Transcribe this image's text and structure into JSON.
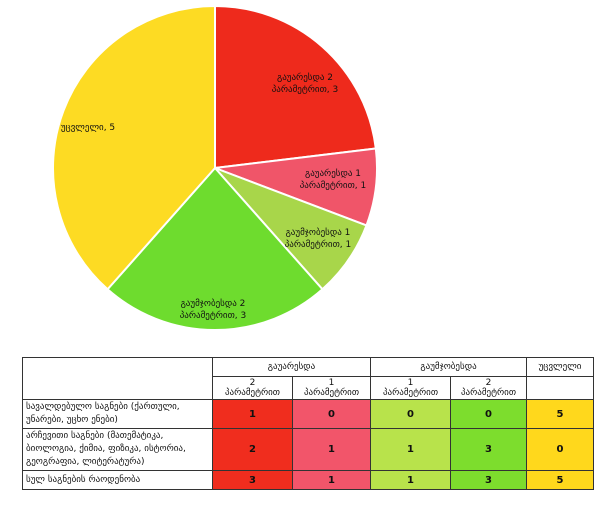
{
  "chart_data": {
    "type": "pie",
    "title": "",
    "slices": [
      {
        "label": "გაუარესდა 2 პარამეტრით, 3",
        "line1": "გაუარესდა 2",
        "line2": "პარამეტრით, 3",
        "value": 3,
        "color": "#ee2a1c"
      },
      {
        "label": "გაუარესდა 1 პარამეტრით, 1",
        "line1": "გაუარესდა 1",
        "line2": "პარამეტრით, 1",
        "value": 1,
        "color": "#f05569"
      },
      {
        "label": "გაუმჯობესდა 1 პარამეტრით, 1",
        "line1": "გაუმჯობესდა 1",
        "line2": "პარამეტრით, 1",
        "value": 1,
        "color": "#a8d64a"
      },
      {
        "label": "გაუმჯობესდა 2 პარამეტრით, 3",
        "line1": "გაუმჯობესდა 2",
        "line2": "პარამეტრით, 3",
        "value": 3,
        "color": "#6edc2e"
      },
      {
        "label": "უცვლელი, 5",
        "line1": "უცვლელი, 5",
        "line2": "",
        "value": 5,
        "color": "#fddb23"
      }
    ]
  },
  "table": {
    "group_worsened": "გაუარესდა",
    "group_improved": "გაუმჯობესდა",
    "group_unchanged": "უცვლელი",
    "sub_headers": [
      {
        "num": "2",
        "text": "პარამეტრით"
      },
      {
        "num": "1",
        "text": "პარამეტრით"
      },
      {
        "num": "1",
        "text": "პარამეტრით"
      },
      {
        "num": "2",
        "text": "პარამეტრით"
      }
    ],
    "rows": [
      {
        "label": "სავალდებულო საგნები (ქართული, უნარები, უცხო ენები)",
        "values": [
          "1",
          "0",
          "0",
          "0",
          "5"
        ]
      },
      {
        "label": "არჩევითი საგნები (მათემატიკა, ბიოლოგია, ქიმია, ფიზიკა, ისტორია, გეოგრაფია, ლიტერატურა)",
        "values": [
          "2",
          "1",
          "1",
          "3",
          "0"
        ]
      },
      {
        "label": "სულ საგნების რაოდენობა",
        "values": [
          "3",
          "1",
          "1",
          "3",
          "5"
        ]
      }
    ]
  }
}
